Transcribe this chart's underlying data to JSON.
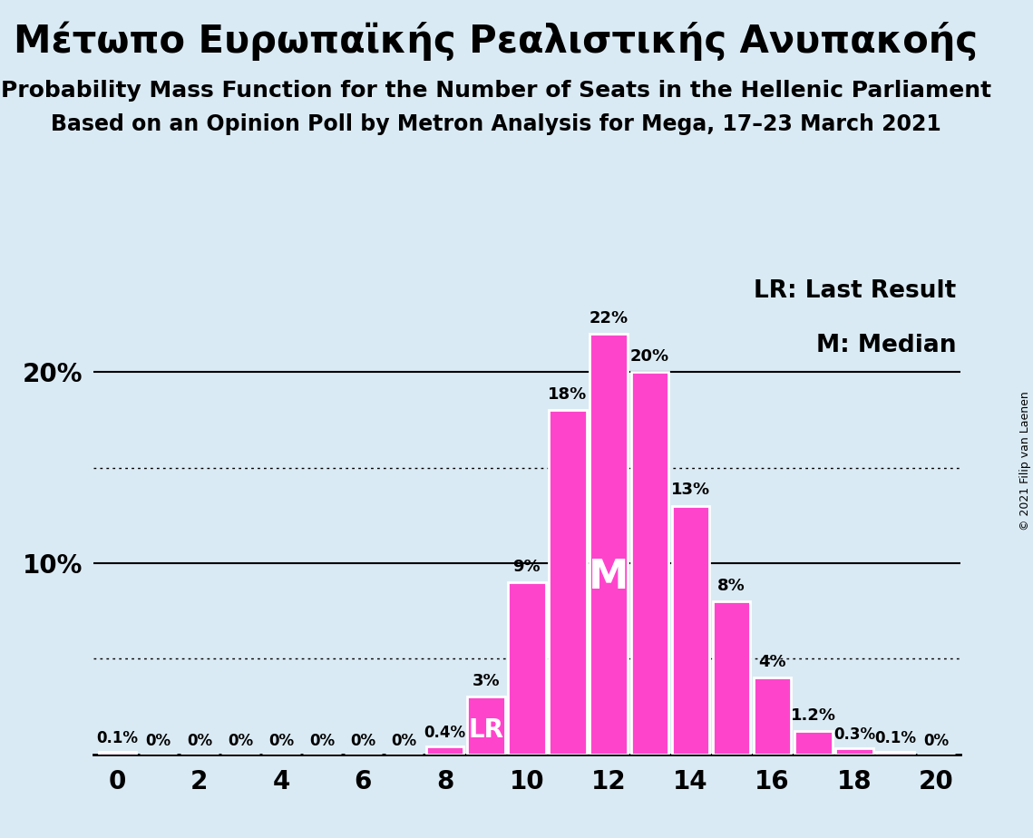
{
  "title_greek": "Μέτωπο Ευρωπαϊκής Ρεαλιστικής Ανυπακοής",
  "subtitle1": "Probability Mass Function for the Number of Seats in the Hellenic Parliament",
  "subtitle2": "Based on an Opinion Poll by Metron Analysis for Mega, 17–23 March 2021",
  "copyright": "© 2021 Filip van Laenen",
  "background_color": "#daeaf4",
  "bar_color": "#ff44cc",
  "bar_edge_color": "#ffffff",
  "seats": [
    0,
    1,
    2,
    3,
    4,
    5,
    6,
    7,
    8,
    9,
    10,
    11,
    12,
    13,
    14,
    15,
    16,
    17,
    18,
    19,
    20
  ],
  "probabilities": [
    0.1,
    0.0,
    0.0,
    0.0,
    0.0,
    0.0,
    0.0,
    0.0,
    0.4,
    3.0,
    9.0,
    18.0,
    22.0,
    20.0,
    13.0,
    8.0,
    4.0,
    1.2,
    0.3,
    0.1,
    0.0
  ],
  "labels": [
    "0.1%",
    "0%",
    "0%",
    "0%",
    "0%",
    "0%",
    "0%",
    "0%",
    "0.4%",
    "3%",
    "9%",
    "18%",
    "22%",
    "20%",
    "13%",
    "8%",
    "4%",
    "1.2%",
    "0.3%",
    "0.1%",
    "0%"
  ],
  "median_seat": 12,
  "lr_seat": 9,
  "xlim": [
    -0.6,
    20.6
  ],
  "ylim": [
    0,
    25
  ],
  "solid_yticks": [
    10,
    20
  ],
  "dotted_yticks": [
    5,
    15
  ],
  "legend_lr": "LR: Last Result",
  "legend_m": "M: Median",
  "title_fontsize": 30,
  "subtitle1_fontsize": 18,
  "subtitle2_fontsize": 17,
  "label_fontsize": 13,
  "axis_fontsize": 20,
  "legend_fontsize": 19,
  "copyright_fontsize": 9,
  "median_label_fontsize": 32,
  "lr_label_fontsize": 20
}
